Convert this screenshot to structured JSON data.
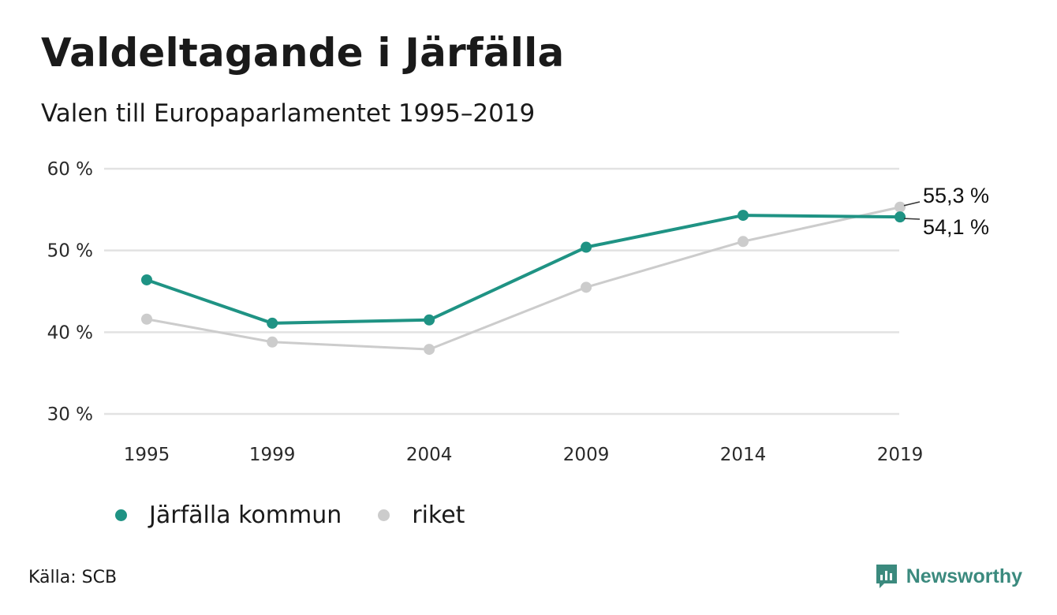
{
  "header": {
    "title": "Valdeltagande i Järfälla",
    "subtitle": "Valen till Europaparlamentet 1995–2019"
  },
  "chart_data": {
    "type": "line",
    "categories": [
      "1995",
      "1999",
      "2004",
      "2009",
      "2014",
      "2019"
    ],
    "series": [
      {
        "name": "Järfälla kommun",
        "color": "#1f9384",
        "values": [
          46.4,
          41.1,
          41.5,
          50.4,
          54.3,
          54.1
        ]
      },
      {
        "name": "riket",
        "color": "#cccccc",
        "values": [
          41.6,
          38.8,
          37.9,
          45.5,
          51.1,
          55.3
        ]
      }
    ],
    "ylim": [
      30,
      60
    ],
    "yticks": [
      60,
      50,
      40,
      30
    ],
    "ytick_labels": [
      "60 %",
      "50 %",
      "40 %",
      "30 %"
    ],
    "end_labels": [
      "54,1 %",
      "55,3 %"
    ],
    "grid": true,
    "legend_position": "bottom-left"
  },
  "legend": {
    "items": [
      {
        "label": "Järfälla kommun",
        "color": "#1f9384"
      },
      {
        "label": "riket",
        "color": "#cccccc"
      }
    ]
  },
  "footer": {
    "source": "Källa: SCB",
    "brand": "Newsworthy",
    "brand_icon": "newsworthy-logo-icon"
  }
}
